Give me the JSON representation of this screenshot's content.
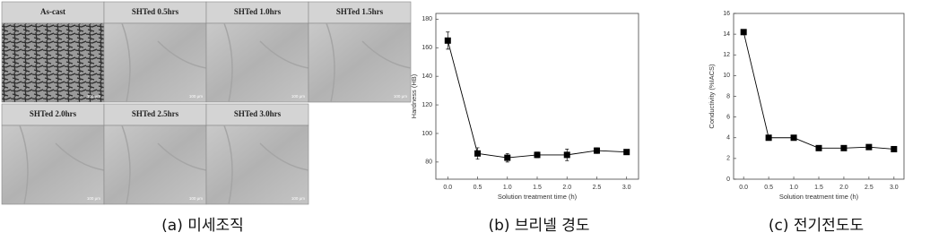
{
  "micrographs": {
    "panels": [
      "As-cast",
      "SHTed 0.5hrs",
      "SHTed 1.0hrs",
      "SHTed 1.5hrs",
      "SHTed 2.0hrs",
      "SHTed 2.5hrs",
      "SHTed 3.0hrs"
    ],
    "scale_label": "100 μm"
  },
  "captions": [
    "(a) 미세조직",
    "(b) 브리넬 경도",
    "(c) 전기전도도"
  ],
  "chart_data": [
    {
      "type": "line",
      "x_label": "Solution treatment time (h)",
      "y_label": "Hardness (HB)",
      "x": [
        0,
        0.5,
        1.0,
        1.5,
        2.0,
        2.5,
        3.0
      ],
      "series": [
        {
          "color": "#000000",
          "values": [
            165,
            86,
            83,
            85,
            85,
            88,
            87
          ],
          "errors": [
            6,
            4,
            3,
            2,
            4,
            2,
            1
          ]
        }
      ],
      "xlim": [
        -0.2,
        3.2
      ],
      "xticks": [
        {
          "value": 0,
          "label": "0.0"
        },
        0.5,
        {
          "value": 1,
          "label": "1.0"
        },
        1.5,
        {
          "value": 2,
          "label": "2.0"
        },
        2.5,
        {
          "value": 3,
          "label": "3.0"
        }
      ],
      "ylim": [
        68,
        184
      ],
      "yticks": [
        80,
        100,
        120,
        140,
        160,
        180
      ]
    },
    {
      "type": "line",
      "x_label": "Solution treatment time (h)",
      "y_label": "Conductivity (%IACS)",
      "x": [
        0,
        0.5,
        1.0,
        1.5,
        2.0,
        2.5,
        3.0
      ],
      "series": [
        {
          "color": "#000000",
          "values": [
            14.2,
            4.0,
            4.0,
            3.0,
            3.0,
            3.1,
            2.9
          ]
        }
      ],
      "xlim": [
        -0.2,
        3.2
      ],
      "xticks": [
        {
          "value": 0,
          "label": "0.0"
        },
        0.5,
        {
          "value": 1,
          "label": "1.0"
        },
        1.5,
        {
          "value": 2,
          "label": "2.0"
        },
        2.5,
        {
          "value": 3,
          "label": "3.0"
        }
      ],
      "ylim": [
        0,
        16
      ],
      "yticks": [
        0,
        2,
        4,
        6,
        8,
        10,
        12,
        14,
        16
      ]
    }
  ]
}
